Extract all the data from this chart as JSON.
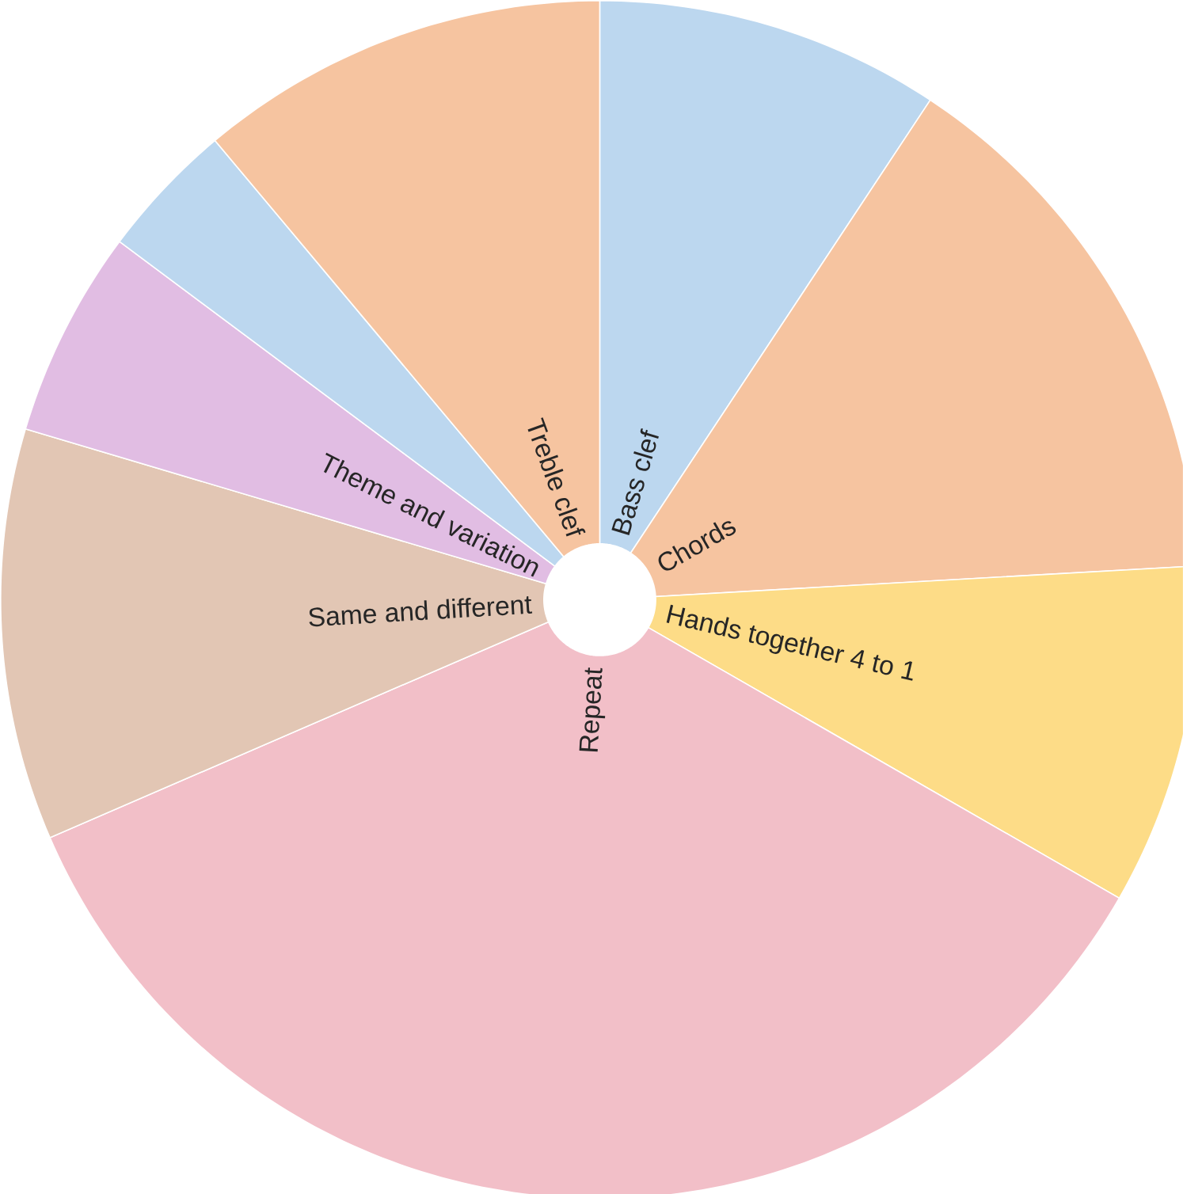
{
  "chart_data": {
    "type": "pie",
    "categories": [
      "Bass clef",
      "Chords",
      "Hands together 4 to 1",
      "Repeat",
      "Same and different",
      "Theme and variation",
      null,
      "Treble clef"
    ],
    "values": [
      9.3,
      14.8,
      9.2,
      35.2,
      11.1,
      5.6,
      3.7,
      11.1
    ],
    "colors": [
      "#bcd7ef",
      "#f6c4a0",
      "#fddc87",
      "#f2bfc8",
      "#e2c6b4",
      "#e1bde3",
      "#bcd7ef",
      "#f6c4a0"
    ]
  }
}
